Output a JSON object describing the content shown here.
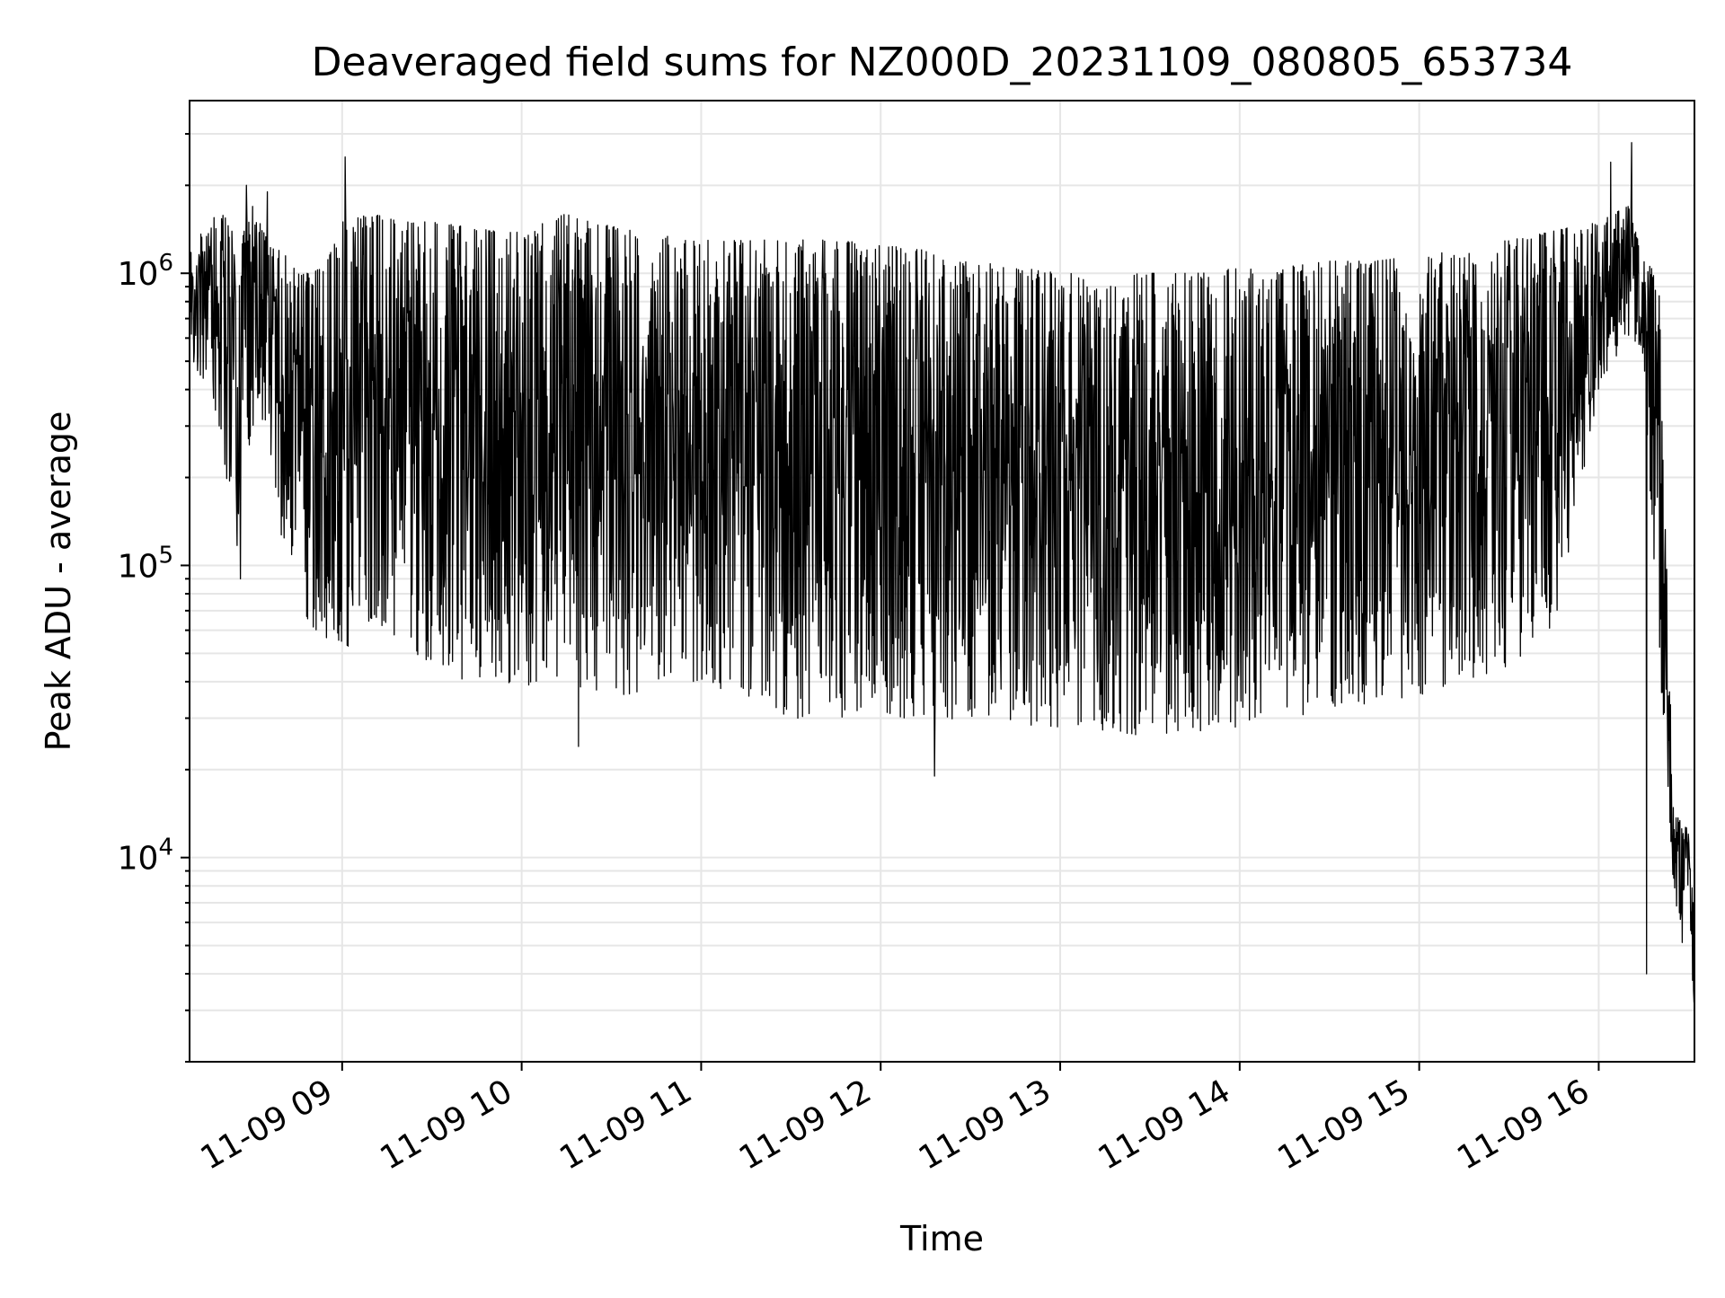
{
  "chart_data": {
    "type": "line",
    "title": "Deaveraged field sums for NZ000D_20231109_080805_653734",
    "xlabel": "Time",
    "ylabel": "Peak ADU - average",
    "x_scale": "time",
    "y_scale": "log",
    "xlim": [
      "2023-11-09 08:09",
      "2023-11-09 16:32"
    ],
    "ylim": [
      2000,
      3900000
    ],
    "grid": true,
    "legend": "none",
    "line_color": "#000000",
    "grid_color": "#e6e6e6",
    "x_ticks": [
      {
        "value": "2023-11-09 09:00",
        "label": "11-09 09"
      },
      {
        "value": "2023-11-09 10:00",
        "label": "11-09 10"
      },
      {
        "value": "2023-11-09 11:00",
        "label": "11-09 11"
      },
      {
        "value": "2023-11-09 12:00",
        "label": "11-09 12"
      },
      {
        "value": "2023-11-09 13:00",
        "label": "11-09 13"
      },
      {
        "value": "2023-11-09 14:00",
        "label": "11-09 14"
      },
      {
        "value": "2023-11-09 15:00",
        "label": "11-09 15"
      },
      {
        "value": "2023-11-09 16:00",
        "label": "11-09 16"
      }
    ],
    "y_ticks": [
      {
        "value": 10000,
        "base": "10",
        "exp": "4"
      },
      {
        "value": 100000,
        "base": "10",
        "exp": "5"
      },
      {
        "value": 1000000,
        "base": "10",
        "exp": "6"
      }
    ],
    "series": [
      {
        "upper_envelope": {
          "x": [
            "2023-11-09 08:09",
            "2023-11-09 08:15",
            "2023-11-09 08:20",
            "2023-11-09 08:25",
            "2023-11-09 08:30",
            "2023-11-09 08:35",
            "2023-11-09 08:40",
            "2023-11-09 08:45",
            "2023-11-09 08:50",
            "2023-11-09 08:55",
            "2023-11-09 09:00",
            "2023-11-09 09:10",
            "2023-11-09 09:20",
            "2023-11-09 09:30",
            "2023-11-09 09:40",
            "2023-11-09 09:50",
            "2023-11-09 10:00",
            "2023-11-09 10:15",
            "2023-11-09 10:30",
            "2023-11-09 10:45",
            "2023-11-09 11:00",
            "2023-11-09 11:15",
            "2023-11-09 11:30",
            "2023-11-09 11:45",
            "2023-11-09 12:00",
            "2023-11-09 12:15",
            "2023-11-09 12:30",
            "2023-11-09 12:45",
            "2023-11-09 13:00",
            "2023-11-09 13:15",
            "2023-11-09 13:30",
            "2023-11-09 13:45",
            "2023-11-09 14:00",
            "2023-11-09 14:15",
            "2023-11-09 14:30",
            "2023-11-09 14:45",
            "2023-11-09 15:00",
            "2023-11-09 15:15",
            "2023-11-09 15:30",
            "2023-11-09 15:45",
            "2023-11-09 16:00",
            "2023-11-09 16:05",
            "2023-11-09 16:10",
            "2023-11-09 16:15",
            "2023-11-09 16:20",
            "2023-11-09 16:25",
            "2023-11-09 16:28",
            "2023-11-09 16:30",
            "2023-11-09 16:32"
          ],
          "values": [
            1300000,
            1400000,
            1800000,
            1200000,
            1700000,
            1300000,
            1200000,
            1000000,
            1000000,
            1100000,
            1500000,
            1600000,
            1500000,
            1500000,
            1450000,
            1400000,
            1400000,
            1600000,
            1450000,
            1350000,
            1300000,
            1300000,
            1300000,
            1300000,
            1250000,
            1200000,
            1100000,
            1050000,
            1000000,
            1000000,
            1000000,
            1000000,
            1050000,
            1050000,
            1100000,
            1100000,
            1150000,
            1200000,
            1300000,
            1400000,
            1500000,
            1600000,
            1700000,
            1100000,
            1000000,
            14000,
            14000,
            12000,
            6000
          ]
        },
        "lower_envelope": {
          "x": [
            "2023-11-09 08:09",
            "2023-11-09 08:15",
            "2023-11-09 08:20",
            "2023-11-09 08:25",
            "2023-11-09 08:30",
            "2023-11-09 08:35",
            "2023-11-09 08:40",
            "2023-11-09 08:45",
            "2023-11-09 08:50",
            "2023-11-09 08:55",
            "2023-11-09 09:00",
            "2023-11-09 09:10",
            "2023-11-09 09:20",
            "2023-11-09 09:30",
            "2023-11-09 09:40",
            "2023-11-09 09:50",
            "2023-11-09 10:00",
            "2023-11-09 10:15",
            "2023-11-09 10:30",
            "2023-11-09 10:45",
            "2023-11-09 11:00",
            "2023-11-09 11:15",
            "2023-11-09 11:30",
            "2023-11-09 11:45",
            "2023-11-09 12:00",
            "2023-11-09 12:15",
            "2023-11-09 12:30",
            "2023-11-09 12:45",
            "2023-11-09 13:00",
            "2023-11-09 13:15",
            "2023-11-09 13:30",
            "2023-11-09 13:45",
            "2023-11-09 14:00",
            "2023-11-09 14:15",
            "2023-11-09 14:30",
            "2023-11-09 14:45",
            "2023-11-09 15:00",
            "2023-11-09 15:15",
            "2023-11-09 15:30",
            "2023-11-09 15:45",
            "2023-11-09 16:00",
            "2023-11-09 16:05",
            "2023-11-09 16:10",
            "2023-11-09 16:15",
            "2023-11-09 16:20",
            "2023-11-09 16:25",
            "2023-11-09 16:28",
            "2023-11-09 16:30",
            "2023-11-09 16:32"
          ],
          "values": [
            500000,
            400000,
            250000,
            110000,
            300000,
            280000,
            120000,
            80000,
            60000,
            55000,
            50000,
            65000,
            55000,
            45000,
            40000,
            42000,
            38000,
            40000,
            35000,
            38000,
            40000,
            35000,
            30000,
            30000,
            32000,
            28000,
            30000,
            28000,
            28000,
            27000,
            26000,
            27000,
            28000,
            30000,
            32000,
            34000,
            36000,
            40000,
            45000,
            60000,
            400000,
            500000,
            600000,
            500000,
            50000,
            8000,
            5000,
            8000,
            2500
          ]
        },
        "spikes": {
          "x": [
            "2023-11-09 08:26",
            "2023-11-09 08:28",
            "2023-11-09 08:35",
            "2023-11-09 09:01",
            "2023-11-09 10:19",
            "2023-11-09 12:18",
            "2023-11-09 16:04",
            "2023-11-09 16:11",
            "2023-11-09 16:16"
          ],
          "values": [
            90000,
            2000000,
            1900000,
            2500000,
            24000,
            19000,
            2400000,
            2800000,
            4000
          ]
        }
      }
    ]
  }
}
